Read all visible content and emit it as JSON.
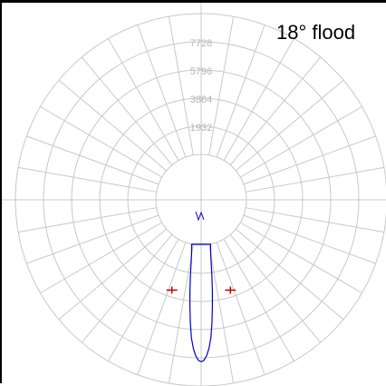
{
  "chart_data": {
    "type": "polar",
    "title": "18° flood",
    "radial_ticks": [
      "1932",
      "3864",
      "5796",
      "7728"
    ],
    "radial_max": 9660,
    "angular_step_deg": 10,
    "series": [
      {
        "color": "#0000cc",
        "angles_deg": [
          0,
          1,
          2,
          3,
          4,
          5,
          6,
          7,
          8,
          9,
          10,
          12
        ],
        "values": [
          8000,
          7900,
          7600,
          7100,
          6400,
          5400,
          4300,
          3200,
          2200,
          1300,
          700,
          0
        ]
      },
      {
        "color": "#cc0000",
        "angles_deg": [
          -18,
          18
        ],
        "values": [
          3400,
          3400
        ]
      }
    ],
    "colors": {
      "grid": "#c8c8c8",
      "curve": "#0000cc",
      "half_angle_marker": "#cc0000"
    }
  }
}
